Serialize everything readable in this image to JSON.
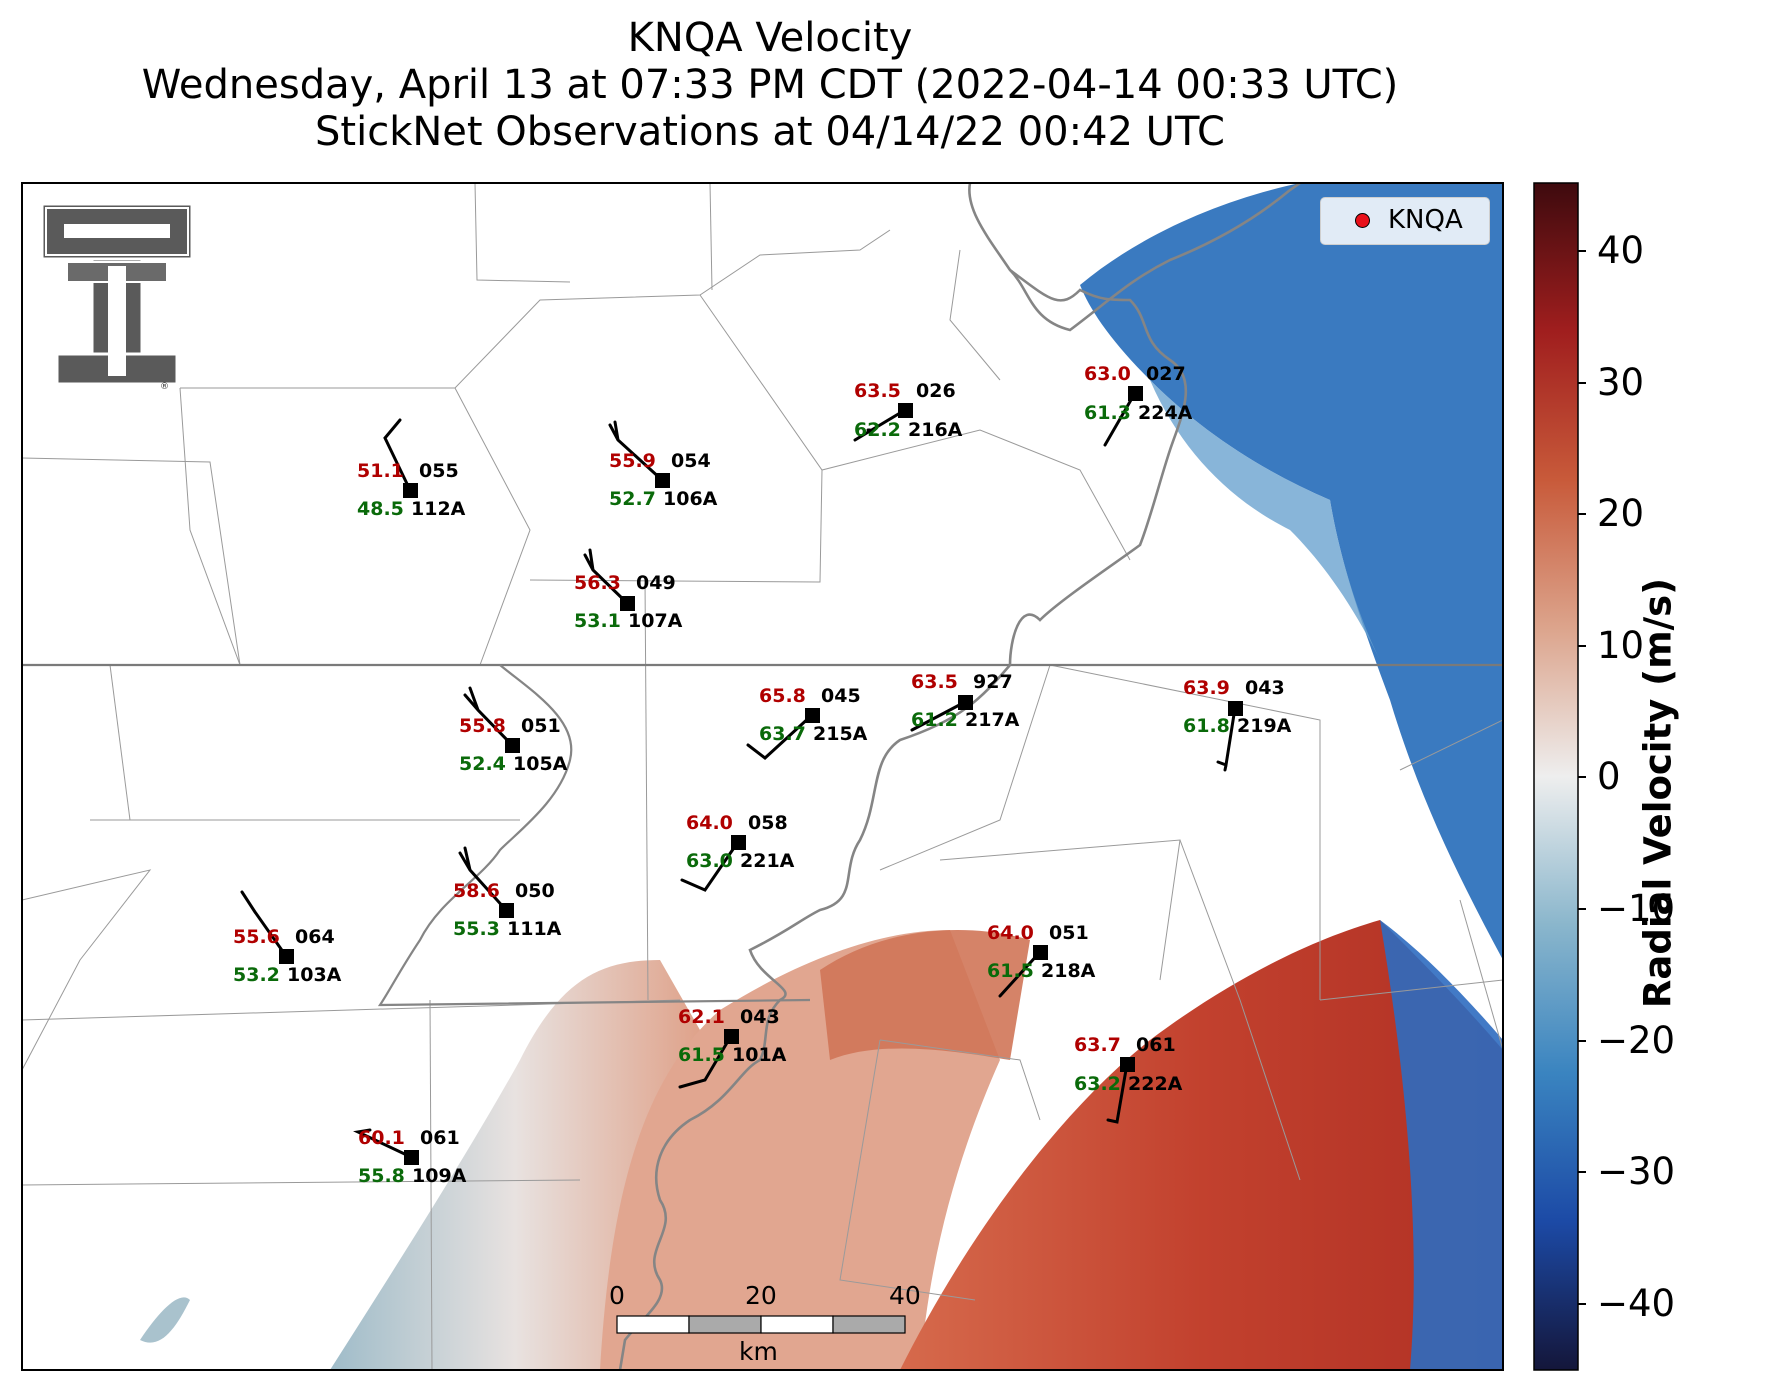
{
  "title": {
    "line1": "KNQA Velocity",
    "line2": "Wednesday, April 13 at 07:33 PM CDT (2022-04-14 00:33 UTC)",
    "line3": "StickNet Observations at 04/14/22 00:42 UTC"
  },
  "legend": {
    "marker_label": "KNQA",
    "marker_color": "#e8101a"
  },
  "colorbar": {
    "title": "Radial Velocity (m/s)",
    "ticks": [
      "40",
      "30",
      "20",
      "10",
      "0",
      "−10",
      "−20",
      "−30",
      "−40"
    ],
    "range": [
      -45,
      45
    ],
    "colors": [
      "#14163a",
      "#1c4aa6",
      "#3a84c0",
      "#8ab6cc",
      "#eeeeee",
      "#dca48c",
      "#c85a3a",
      "#a01e1e",
      "#3e0a0e"
    ]
  },
  "scale_bar": {
    "labels": [
      "0",
      "20",
      "40"
    ],
    "unit": "km"
  },
  "logo": {
    "name": "Texas Tech double-T",
    "mark": "®"
  },
  "stations": [
    {
      "temp": "51.1",
      "dew": "48.5",
      "wdir": "055",
      "id": "112A"
    },
    {
      "temp": "55.9",
      "dew": "52.7",
      "wdir": "054",
      "id": "106A"
    },
    {
      "temp": "63.5",
      "dew": "62.2",
      "wdir": "026",
      "id": "216A"
    },
    {
      "temp": "63.0",
      "dew": "61.3",
      "wdir": "027",
      "id": "224A"
    },
    {
      "temp": "56.3",
      "dew": "53.1",
      "wdir": "049",
      "id": "107A"
    },
    {
      "temp": "55.8",
      "dew": "52.4",
      "wdir": "051",
      "id": "105A"
    },
    {
      "temp": "65.8",
      "dew": "63.7",
      "wdir": "045",
      "id": "215A"
    },
    {
      "temp": "63.5",
      "dew": "61.2",
      "wdir": "927",
      "id": "217A"
    },
    {
      "temp": "63.9",
      "dew": "61.8",
      "wdir": "043",
      "id": "219A"
    },
    {
      "temp": "64.0",
      "dew": "63.0",
      "wdir": "058",
      "id": "221A"
    },
    {
      "temp": "58.6",
      "dew": "55.3",
      "wdir": "050",
      "id": "111A"
    },
    {
      "temp": "55.6",
      "dew": "53.2",
      "wdir": "064",
      "id": "103A"
    },
    {
      "temp": "64.0",
      "dew": "61.5",
      "wdir": "051",
      "id": "218A"
    },
    {
      "temp": "62.1",
      "dew": "61.5",
      "wdir": "043",
      "id": "101A"
    },
    {
      "temp": "63.7",
      "dew": "63.2",
      "wdir": "061",
      "id": "222A"
    },
    {
      "temp": "60.1",
      "dew": "55.8",
      "wdir": "061",
      "id": "109A"
    }
  ]
}
